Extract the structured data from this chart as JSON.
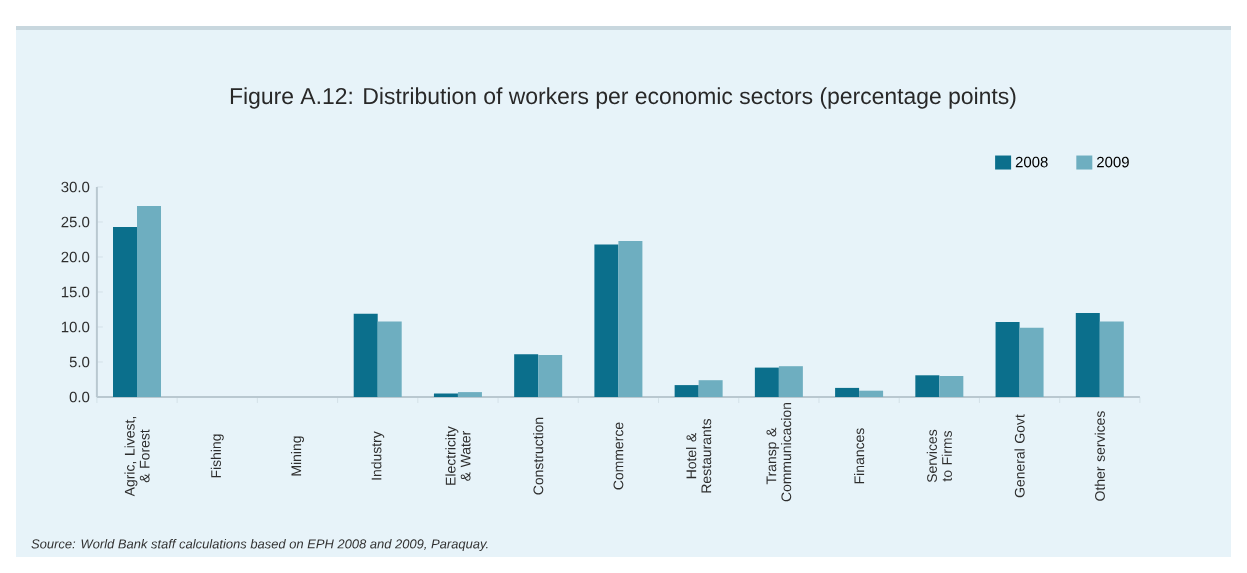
{
  "chart_data": {
    "type": "bar",
    "title": "Figure A.12: Distribution of workers per economic sectors (percentage points)",
    "categories": [
      "Agric, Livest, & Forest",
      "Fishing",
      "Mining",
      "Industry",
      "Electricity & Water",
      "Construction",
      "Commerce",
      "Hotel & Restaurants",
      "Transp & Communicacion",
      "Finances",
      "Services to Firms",
      "General Govt",
      "Other services"
    ],
    "series": [
      {
        "name": "2008",
        "color": "#0b6f8c",
        "values": [
          24.3,
          0,
          0,
          11.9,
          0.5,
          6.1,
          21.8,
          1.7,
          4.2,
          1.3,
          3.1,
          10.7,
          12.0
        ]
      },
      {
        "name": "2009",
        "color": "#6eaec0",
        "values": [
          27.3,
          0,
          0,
          10.8,
          0.7,
          6.0,
          22.3,
          2.4,
          4.4,
          0.9,
          3.0,
          9.9,
          10.8
        ]
      }
    ],
    "ylim": [
      0,
      30
    ],
    "yticks": [
      {
        "value": 0,
        "label": "0.0"
      },
      {
        "value": 5,
        "label": "5.0"
      },
      {
        "value": 10,
        "label": "10.0"
      },
      {
        "value": 15,
        "label": "15.0"
      },
      {
        "value": 20,
        "label": "20.0"
      },
      {
        "value": 25,
        "label": "25.0"
      },
      {
        "value": 30,
        "label": "30.0"
      }
    ],
    "legend": "top right",
    "grid": false,
    "annotations": [
      "Source: World Bank staff calculations based on EPH 2008 and 2009, Paraquay."
    ]
  }
}
